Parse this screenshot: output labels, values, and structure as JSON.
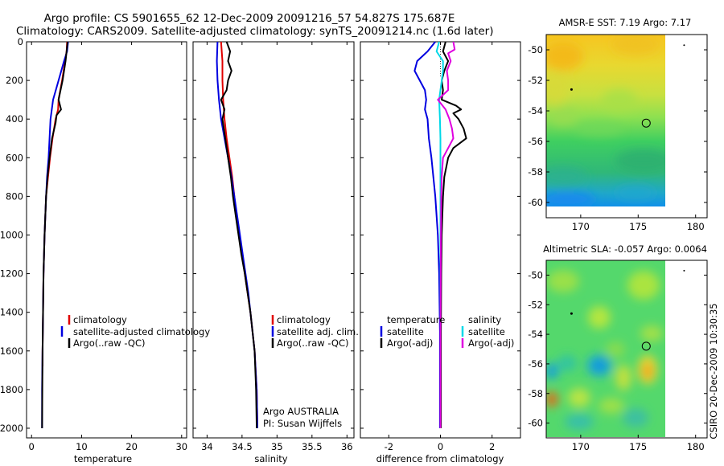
{
  "header": {
    "title_line1": "Argo profile: CS 5901655_62 12-Dec-2009 20091216_57 54.827S 175.687E",
    "title_line2": "Climatology: CARS2009. Satellite-adjusted climatology: synTS_20091214.nc (1.6d later)"
  },
  "footer": {
    "timestamp": "CSIRO 20-Dec-2009 10:30:35"
  },
  "chart_data": [
    {
      "id": "temperature",
      "type": "line",
      "xlabel": "temperature",
      "ylabel": "",
      "xlim": [
        -1,
        31
      ],
      "ylim": [
        2050,
        0
      ],
      "xticks": [
        0,
        10,
        20,
        30
      ],
      "yticks": [
        0,
        200,
        400,
        600,
        800,
        1000,
        1200,
        1400,
        1600,
        1800,
        2000
      ],
      "legend": [
        "climatology",
        "satellite-adjusted climatology",
        "Argo(..raw -QC)"
      ],
      "series": [
        {
          "name": "climatology",
          "color": "#e00000",
          "depth": [
            0,
            50,
            100,
            200,
            300,
            350,
            400,
            500,
            600,
            700,
            800,
            1000,
            1200,
            1400,
            1600,
            1680
          ],
          "values": [
            7.1,
            7.0,
            6.7,
            6.1,
            5.4,
            5.3,
            4.8,
            4.2,
            3.7,
            3.3,
            2.9,
            2.6,
            2.4,
            2.3,
            2.2,
            2.2
          ]
        },
        {
          "name": "satellite-adjusted climatology",
          "color": "#0000e0",
          "depth": [
            0,
            50,
            100,
            200,
            300,
            400,
            500,
            600,
            700,
            800,
            1000,
            1200,
            1400,
            1600,
            1800,
            2000
          ],
          "values": [
            7.3,
            7.1,
            6.5,
            5.4,
            4.3,
            3.8,
            3.6,
            3.4,
            3.1,
            2.9,
            2.6,
            2.4,
            2.3,
            2.2,
            2.1,
            2.1
          ]
        },
        {
          "name": "Argo(..raw -QC)",
          "color": "#000000",
          "depth": [
            0,
            50,
            100,
            200,
            300,
            350,
            380,
            420,
            500,
            600,
            700,
            800,
            1000,
            1200,
            1400,
            1600,
            1800,
            2000
          ],
          "values": [
            7.2,
            7.0,
            6.8,
            6.2,
            5.4,
            5.9,
            5.0,
            4.8,
            4.1,
            3.6,
            3.2,
            2.9,
            2.6,
            2.4,
            2.3,
            2.2,
            2.15,
            2.1
          ]
        }
      ]
    },
    {
      "id": "salinity",
      "type": "line",
      "xlabel": "salinity",
      "xlim": [
        33.8,
        36.1
      ],
      "ylim": [
        2050,
        0
      ],
      "xticks": [
        34,
        34.5,
        35,
        35.5,
        36
      ],
      "legend": [
        "climatology",
        "satellite adj. clim.",
        "Argo(..raw -QC)"
      ],
      "annotation": [
        "Argo AUSTRALIA",
        "PI: Susan Wijffels"
      ],
      "series": [
        {
          "name": "climatology",
          "color": "#e00000",
          "depth": [
            0,
            100,
            200,
            300,
            400,
            500,
            600,
            700,
            800,
            900,
            1000,
            1100,
            1200,
            1300,
            1400,
            1500,
            1600,
            1800,
            2000
          ],
          "values": [
            34.2,
            34.22,
            34.22,
            34.23,
            34.25,
            34.28,
            34.32,
            34.36,
            34.39,
            34.42,
            34.46,
            34.5,
            34.54,
            34.58,
            34.62,
            34.65,
            34.68,
            34.71,
            34.72
          ]
        },
        {
          "name": "satellite adj. clim.",
          "color": "#0000e0",
          "depth": [
            0,
            100,
            200,
            300,
            400,
            500,
            600,
            700,
            800,
            900,
            1000,
            1100,
            1200,
            1300,
            1400,
            1500,
            1600,
            1800,
            2000
          ],
          "values": [
            34.15,
            34.14,
            34.15,
            34.17,
            34.2,
            34.25,
            34.3,
            34.35,
            34.39,
            34.43,
            34.47,
            34.51,
            34.55,
            34.59,
            34.62,
            34.65,
            34.68,
            34.71,
            34.72
          ]
        },
        {
          "name": "Argo(..raw -QC)",
          "color": "#000000",
          "depth": [
            0,
            50,
            100,
            150,
            200,
            250,
            300,
            350,
            400,
            500,
            600,
            700,
            800,
            900,
            1000,
            1100,
            1200,
            1400,
            1600,
            1800,
            2000
          ],
          "values": [
            34.28,
            34.33,
            34.3,
            34.35,
            34.3,
            34.28,
            34.2,
            34.25,
            34.22,
            34.26,
            34.3,
            34.34,
            34.37,
            34.41,
            34.45,
            34.49,
            34.54,
            34.62,
            34.68,
            34.7,
            34.71
          ]
        }
      ]
    },
    {
      "id": "difference",
      "type": "line",
      "xlabel": "difference from climatology",
      "xlim": [
        -3.1,
        3.1
      ],
      "ylim": [
        2050,
        0
      ],
      "xticks": [
        -2,
        0,
        2
      ],
      "legend_temperature_header": "temperature",
      "legend_salinity_header": "salinity",
      "legend": [
        "satellite",
        "Argo(-adj)",
        "satellite",
        "Argo(-adj)"
      ],
      "series": [
        {
          "name": "temperature satellite",
          "color": "#0000e0",
          "depth": [
            0,
            50,
            100,
            150,
            200,
            250,
            300,
            350,
            400,
            500,
            600,
            800,
            1000,
            1200,
            1500,
            1800,
            2000
          ],
          "values": [
            -0.2,
            -0.5,
            -0.9,
            -1.0,
            -0.8,
            -0.6,
            -0.55,
            -0.6,
            -0.5,
            -0.45,
            -0.35,
            -0.2,
            -0.1,
            -0.05,
            -0.02,
            -0.02,
            -0.02
          ]
        },
        {
          "name": "temperature Argo(-adj)",
          "color": "#000000",
          "depth": [
            0,
            50,
            100,
            150,
            200,
            250,
            300,
            330,
            350,
            370,
            400,
            450,
            500,
            550,
            600,
            700,
            800,
            1000,
            1200,
            1500,
            2000
          ],
          "values": [
            0.2,
            0.1,
            0.3,
            0.15,
            0.05,
            0.1,
            0.05,
            0.6,
            0.8,
            0.5,
            0.7,
            0.9,
            1.0,
            0.5,
            0.3,
            0.15,
            0.1,
            0.05,
            0.03,
            0.02,
            0.02
          ]
        },
        {
          "name": "salinity satellite",
          "color": "#00d8e8",
          "depth": [
            0,
            50,
            100,
            150,
            200,
            300,
            400,
            500,
            700,
            900,
            1100,
            1300,
            1500,
            1800,
            2000
          ],
          "values": [
            -0.05,
            -0.15,
            0.1,
            0.1,
            0.05,
            -0.05,
            -0.02,
            0.0,
            0.0,
            0.0,
            0.0,
            0.0,
            0.0,
            0.0,
            0.0
          ]
        },
        {
          "name": "salinity Argo(-adj)",
          "color": "#e000e0",
          "depth": [
            0,
            40,
            60,
            100,
            150,
            200,
            250,
            300,
            350,
            400,
            450,
            500,
            550,
            600,
            700,
            800,
            1000,
            1200,
            1500,
            2000
          ],
          "values": [
            0.5,
            0.55,
            0.3,
            0.4,
            0.25,
            0.3,
            0.3,
            -0.1,
            0.2,
            0.35,
            0.45,
            0.5,
            0.3,
            0.1,
            0.05,
            0.03,
            0.02,
            0.01,
            0.0,
            0.0
          ]
        }
      ]
    },
    {
      "id": "sst-map",
      "type": "heatmap",
      "title": "AMSR-E SST: 7.19 Argo: 7.17",
      "xlim": [
        167,
        181
      ],
      "ylim": [
        -61,
        -49
      ],
      "xticks": [
        170,
        175,
        180
      ],
      "yticks": [
        -50,
        -52,
        -54,
        -56,
        -58,
        -60
      ],
      "argo_position": [
        175.7,
        -54.8
      ]
    },
    {
      "id": "sla-map",
      "type": "heatmap",
      "title": "Altimetric SLA: -0.057 Argo: 0.0064",
      "xlim": [
        167,
        181
      ],
      "ylim": [
        -61,
        -49
      ],
      "xticks": [
        170,
        175,
        180
      ],
      "yticks": [
        -50,
        -52,
        -54,
        -56,
        -58,
        -60
      ],
      "argo_position": [
        175.7,
        -54.8
      ]
    }
  ]
}
